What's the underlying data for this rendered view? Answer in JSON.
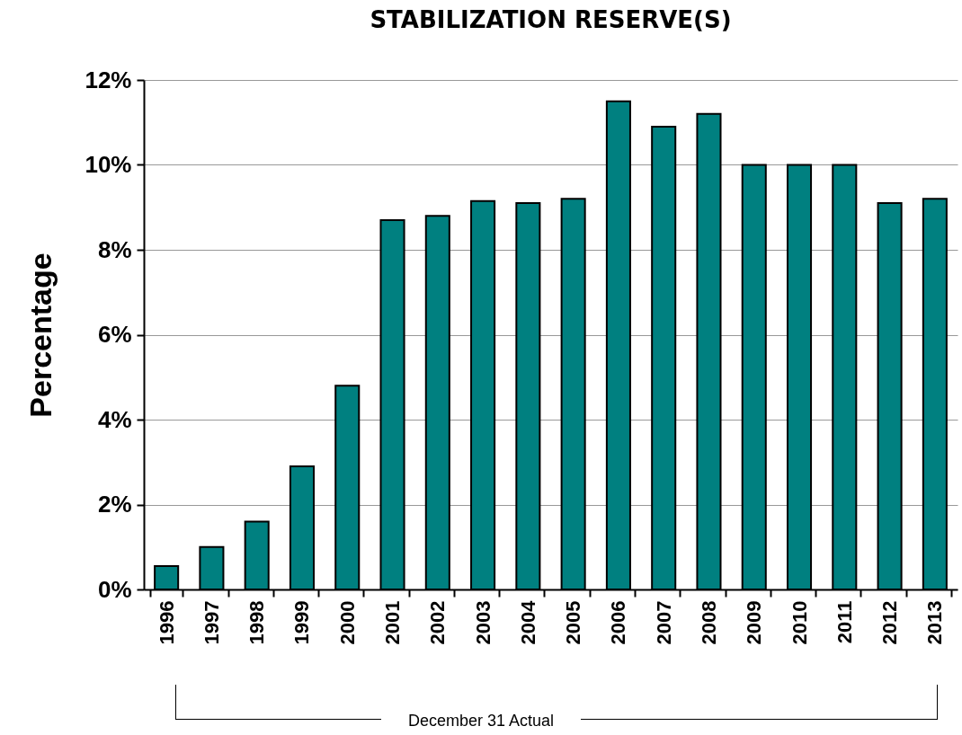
{
  "chart_data": {
    "type": "bar",
    "title": "STABILIZATION RESERVE(S)",
    "ylabel": "Percentage",
    "categories": [
      "1996",
      "1997",
      "1998",
      "1999",
      "2000",
      "2001",
      "2002",
      "2003",
      "2004",
      "2005",
      "2006",
      "2007",
      "2008",
      "2009",
      "2010",
      "2011",
      "2012",
      "2013"
    ],
    "values": [
      0.55,
      1.0,
      1.6,
      2.9,
      4.8,
      8.7,
      8.8,
      9.15,
      9.1,
      9.2,
      11.5,
      10.9,
      11.2,
      10.0,
      10.0,
      10.0,
      9.1,
      9.2
    ],
    "color": "#008080",
    "ylim": [
      0,
      12
    ],
    "yticks": [
      {
        "value": 0,
        "label": "0%"
      },
      {
        "value": 2,
        "label": "2%"
      },
      {
        "value": 4,
        "label": "4%"
      },
      {
        "value": 6,
        "label": "6%"
      },
      {
        "value": 8,
        "label": "8%"
      },
      {
        "value": 10,
        "label": "10%"
      },
      {
        "value": 12,
        "label": "12%"
      }
    ],
    "grid": "y",
    "annotations": [
      "December 31 Actual"
    ]
  }
}
